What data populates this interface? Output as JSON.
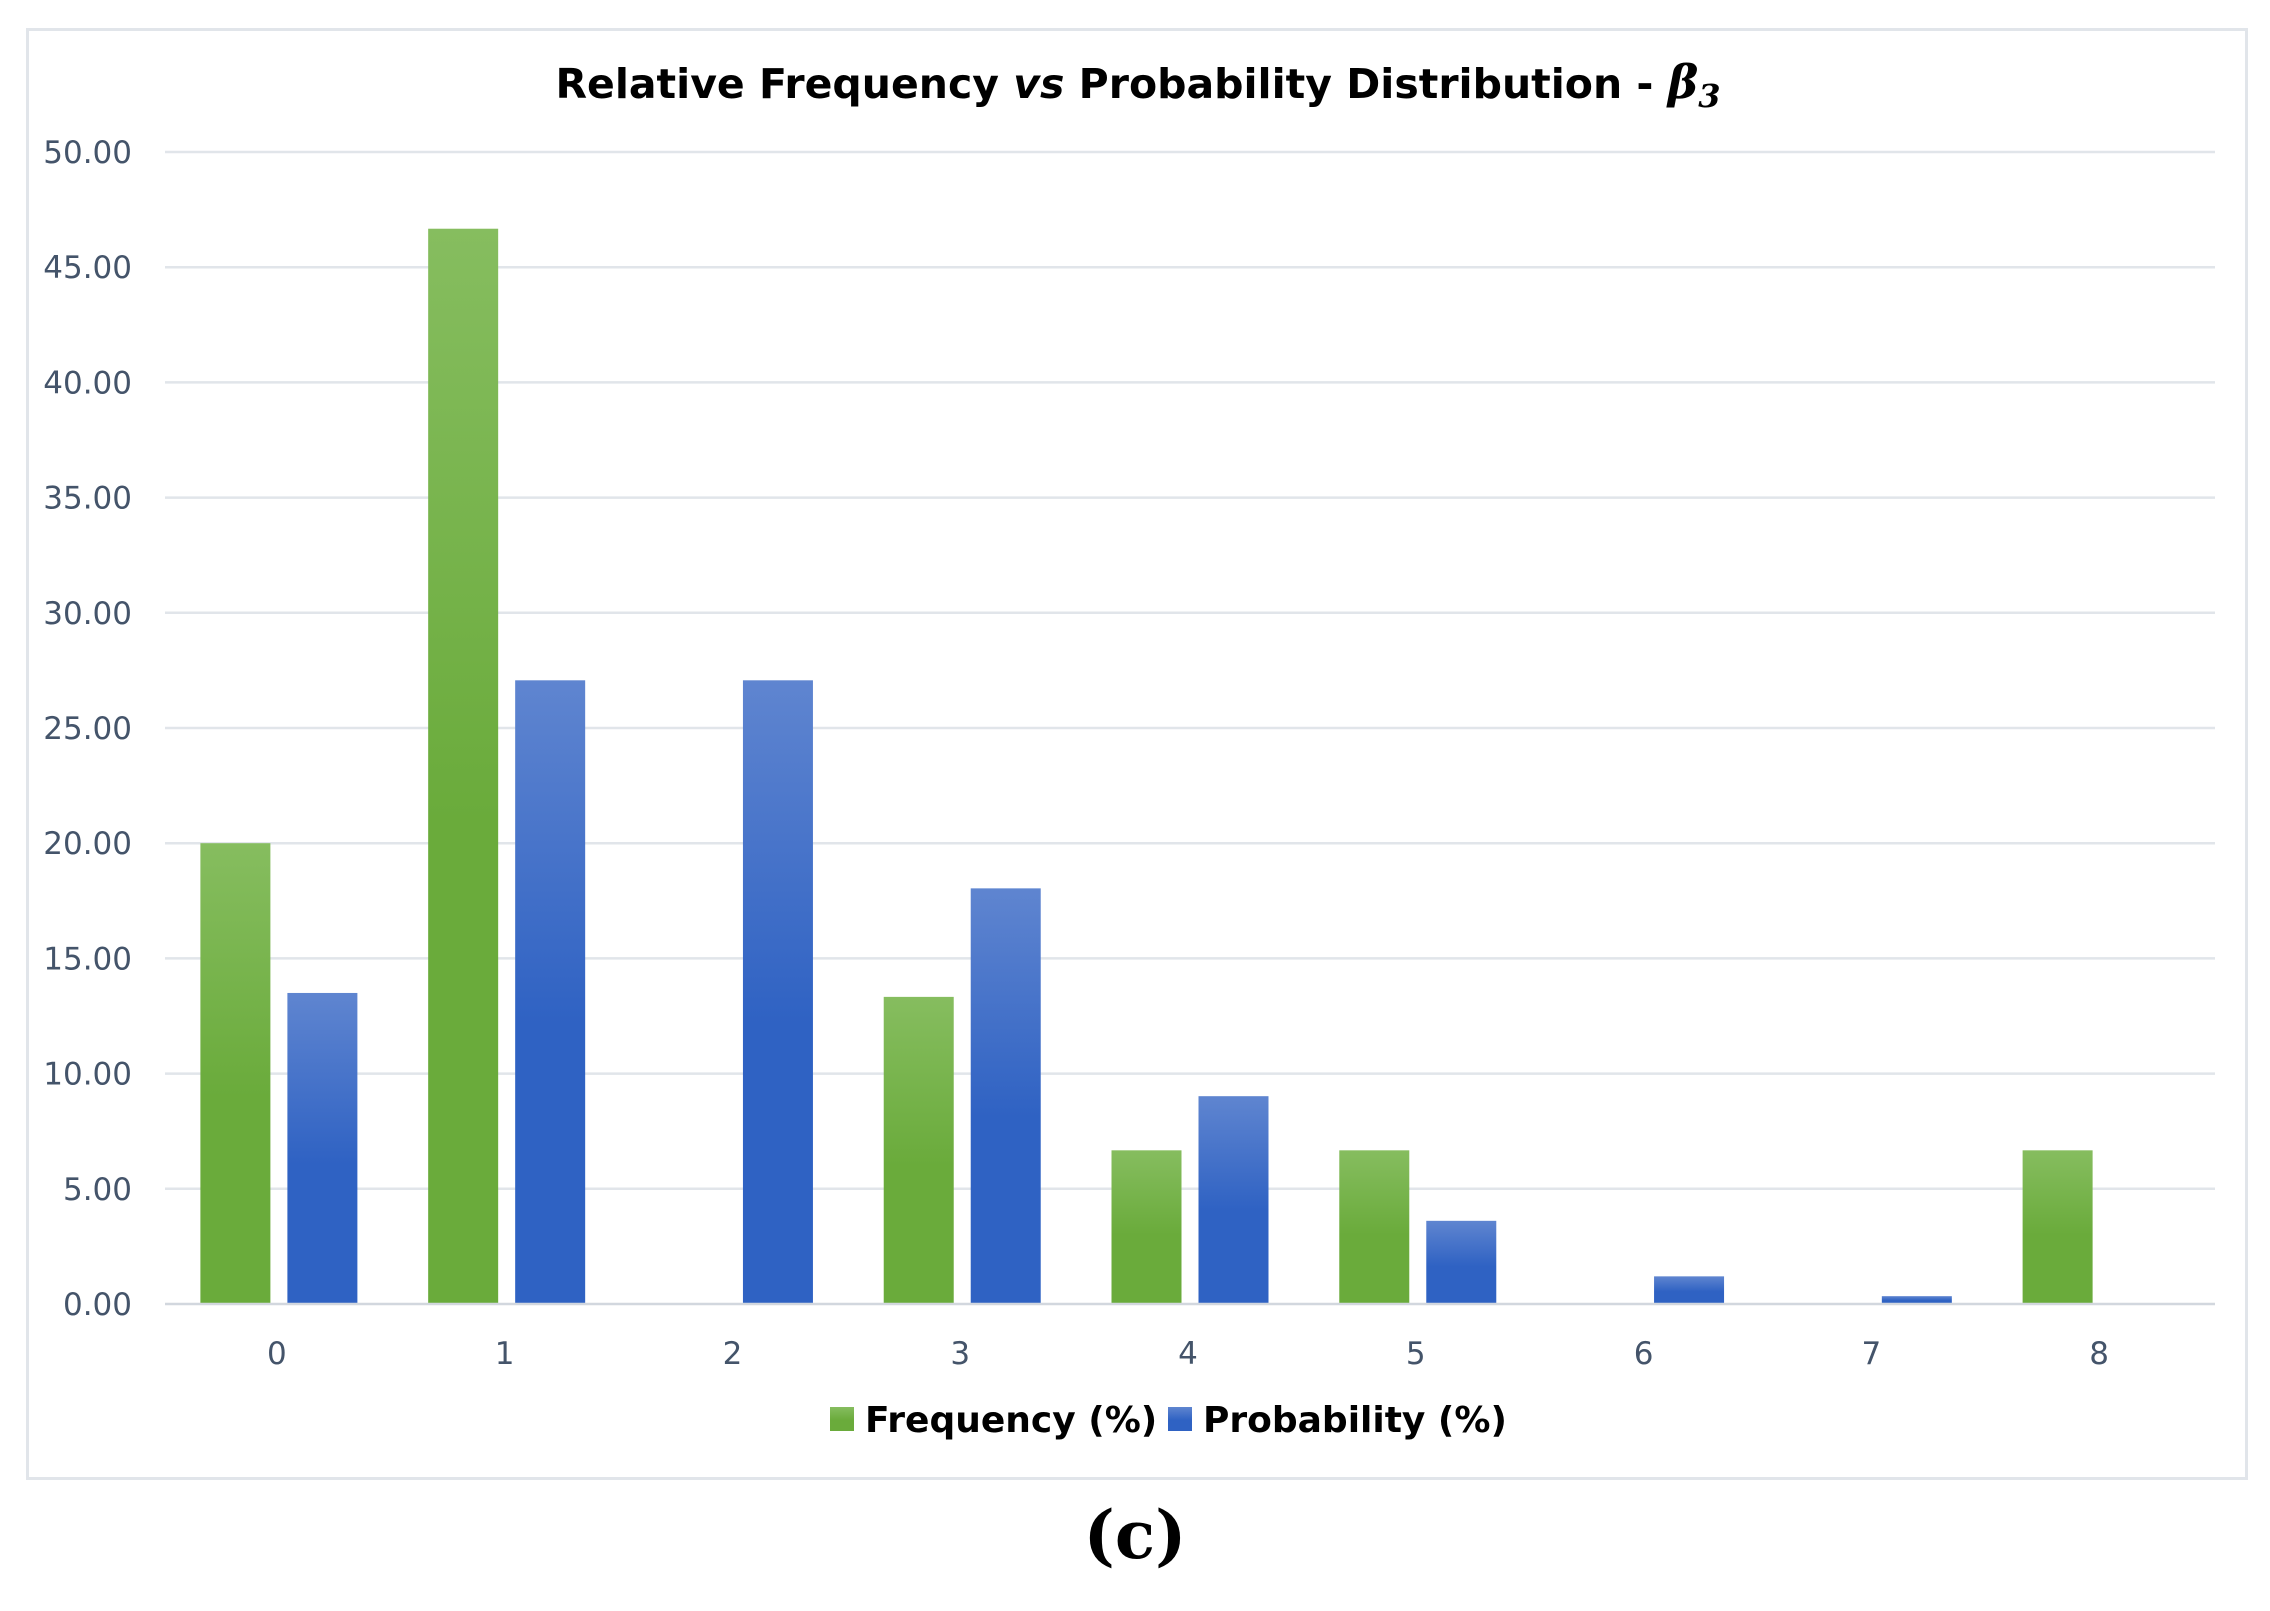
{
  "chart_data": {
    "type": "bar",
    "title_parts": {
      "prefix": "Relative Frequency ",
      "vs": "vs",
      "middle": " Probability Distribution - ",
      "symbol": "β",
      "subscript": "3"
    },
    "xlabel": "",
    "ylabel": "",
    "categories": [
      "0",
      "1",
      "2",
      "3",
      "4",
      "5",
      "6",
      "7",
      "8"
    ],
    "series": [
      {
        "name": "Frequency (%)",
        "color": "#6aab3b",
        "color_light": "#86bd5f",
        "values": [
          20.0,
          46.67,
          0,
          13.33,
          6.67,
          6.67,
          0,
          0,
          6.67
        ]
      },
      {
        "name": "Probability (%)",
        "color": "#2f62c3",
        "color_light": "#5f85d0",
        "values": [
          13.5,
          27.07,
          27.07,
          18.04,
          9.02,
          3.61,
          1.2,
          0.34,
          0
        ]
      }
    ],
    "ylim": [
      0,
      50
    ],
    "yticks": [
      "0.00",
      "5.00",
      "10.00",
      "15.00",
      "20.00",
      "25.00",
      "30.00",
      "35.00",
      "40.00",
      "45.00",
      "50.00"
    ],
    "grid": true,
    "legend_position": "bottom"
  },
  "panel_label": "(c)"
}
